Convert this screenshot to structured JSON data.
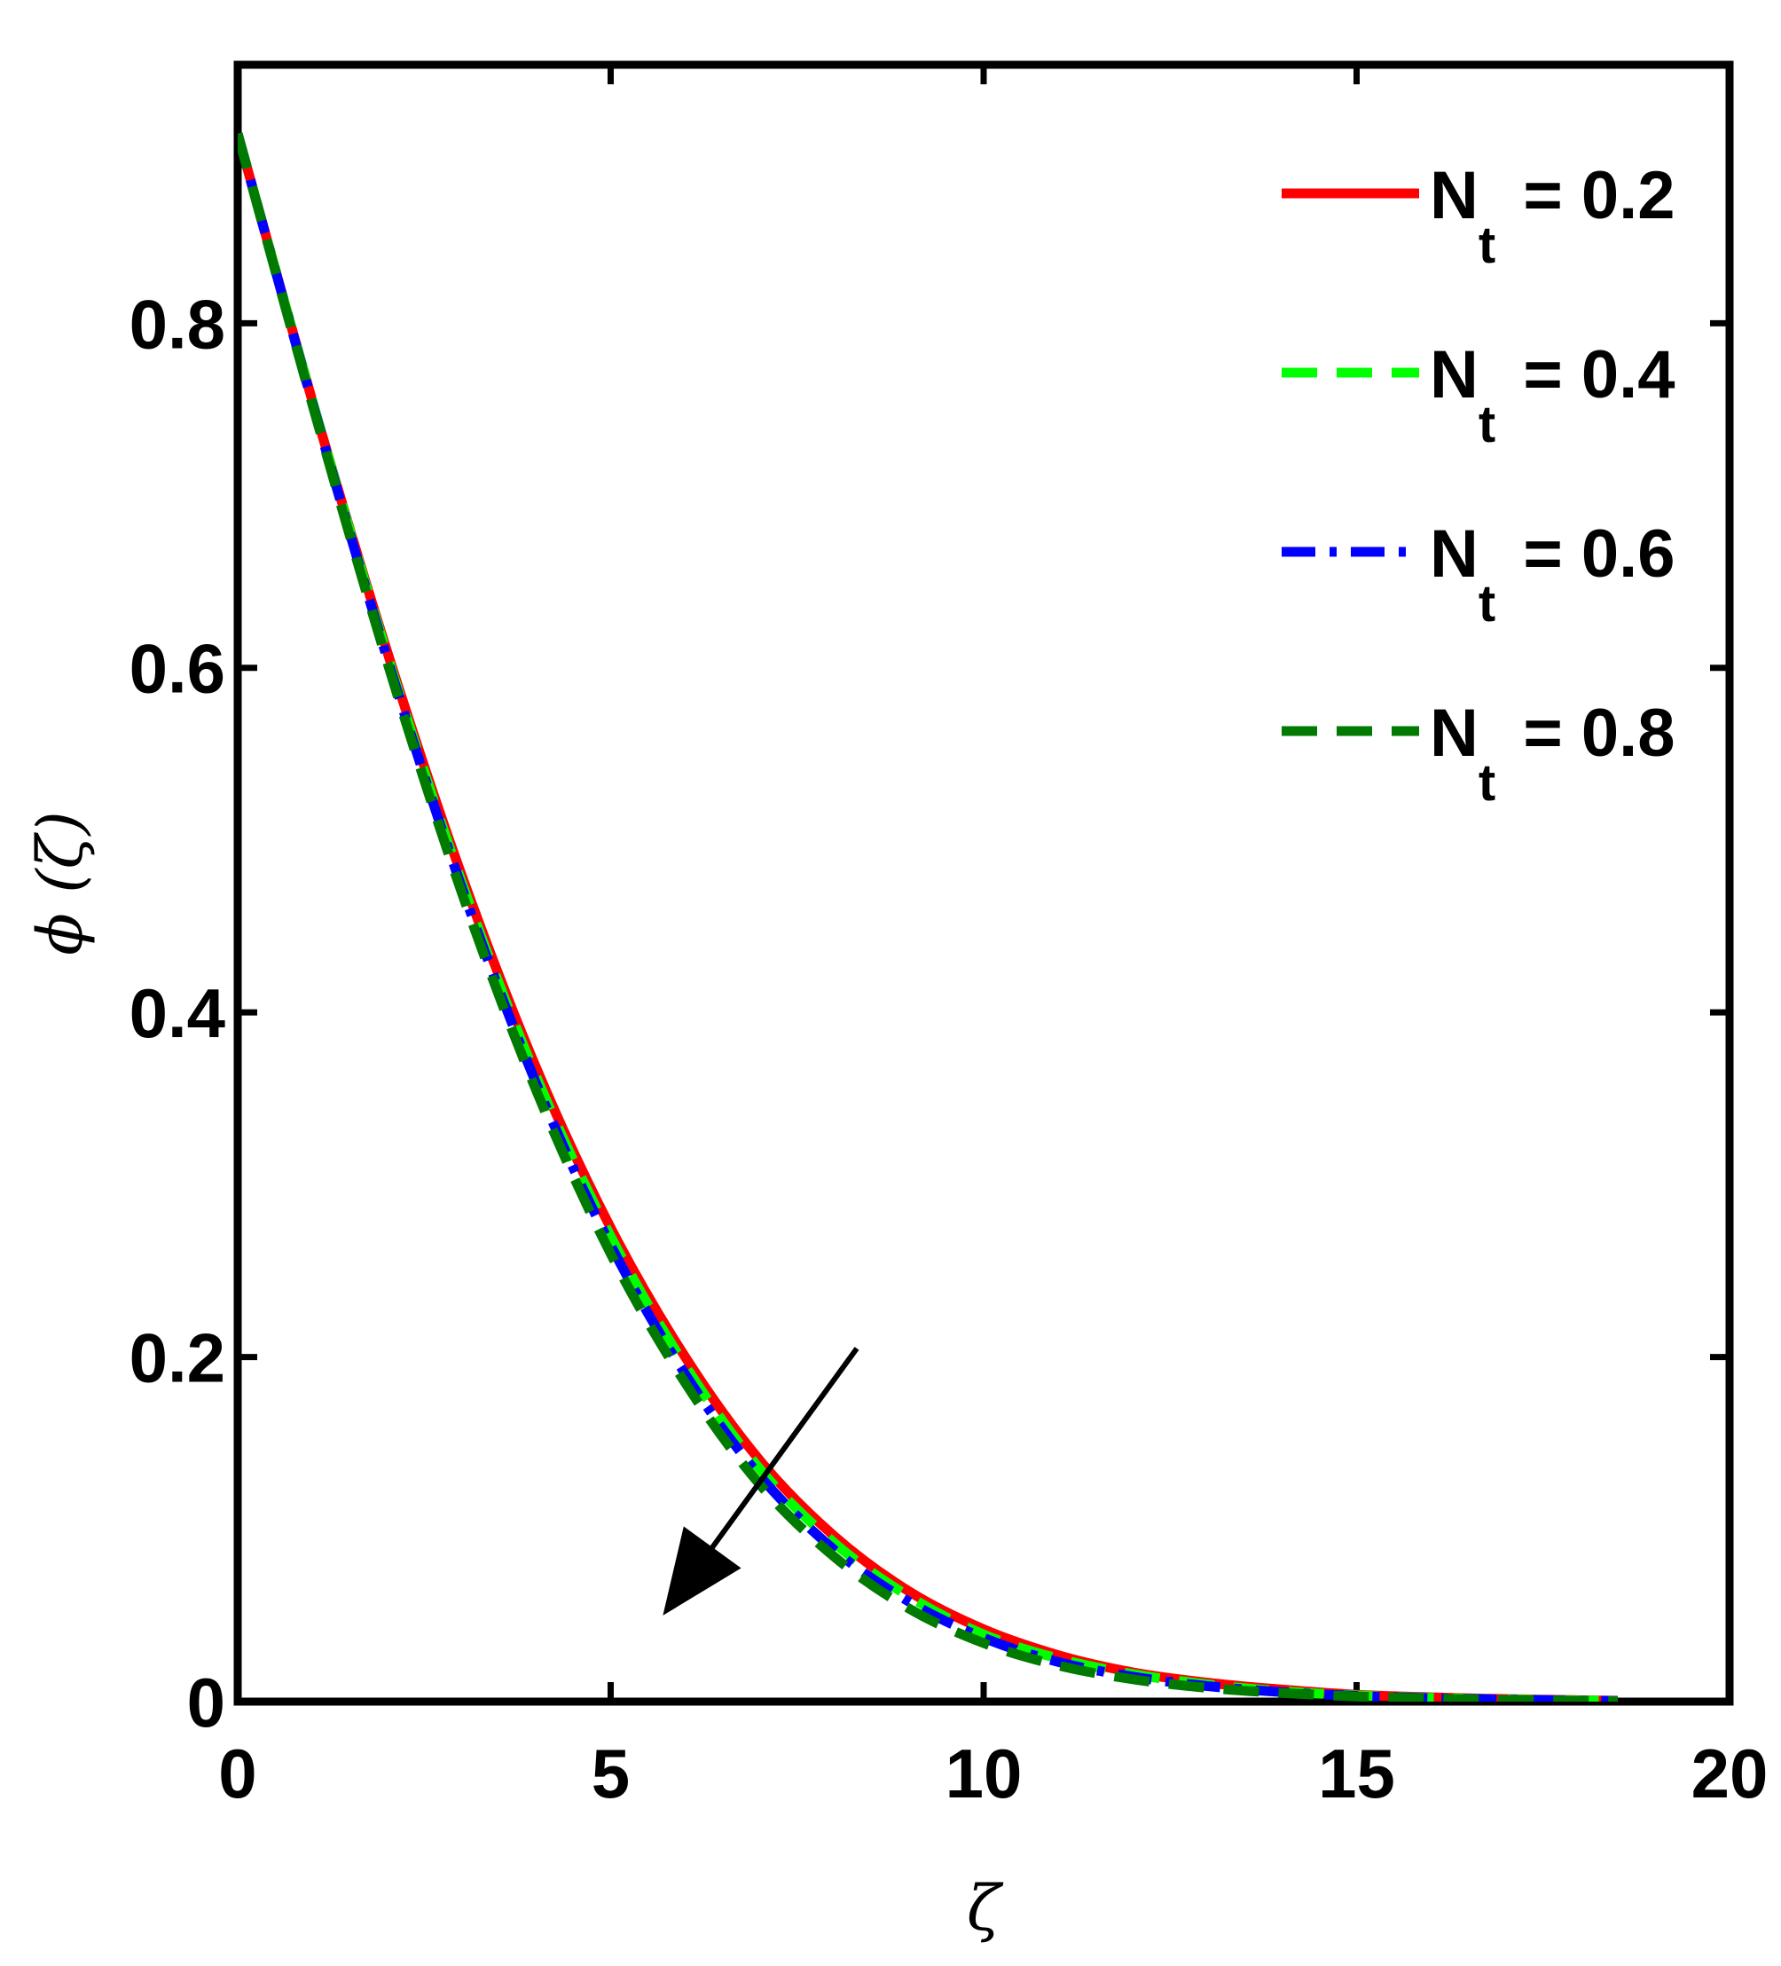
{
  "chart_data": {
    "type": "line",
    "xlabel": "ζ",
    "ylabel": "ϕ (ζ)",
    "xlim": [
      0,
      20
    ],
    "ylim": [
      0,
      0.95
    ],
    "xticks": [
      "0",
      "5",
      "10",
      "15",
      "20"
    ],
    "yticks": [
      "0",
      "0.2",
      "0.4",
      "0.6",
      "0.8"
    ],
    "grid": false,
    "legend_position": "top-right",
    "x": [
      0,
      1,
      2,
      3,
      4,
      5,
      6,
      7,
      8,
      9,
      10,
      11,
      12,
      13,
      14,
      15,
      16,
      17,
      18.5
    ],
    "series": [
      {
        "name": "N = 0.2",
        "name_main": "N",
        "name_sub": "t",
        "name_value": " = 0.2",
        "color": "#ff0000",
        "dash": "solid",
        "values": [
          0.91,
          0.755,
          0.61,
          0.48,
          0.368,
          0.275,
          0.2,
          0.14,
          0.096,
          0.064,
          0.042,
          0.027,
          0.017,
          0.011,
          0.007,
          0.004,
          0.0025,
          0.0015,
          0.0005
        ]
      },
      {
        "name": "N = 0.4",
        "name_main": "N",
        "name_sub": "t",
        "name_value": " = 0.4",
        "color": "#00ff00",
        "dash": "dashed",
        "values": [
          0.91,
          0.755,
          0.608,
          0.476,
          0.363,
          0.27,
          0.195,
          0.135,
          0.092,
          0.061,
          0.039,
          0.025,
          0.016,
          0.01,
          0.006,
          0.0036,
          0.0022,
          0.0013,
          0.0004
        ]
      },
      {
        "name": "N = 0.6",
        "name_main": "N",
        "name_sub": "t",
        "name_value": " = 0.6",
        "color": "#0000ff",
        "dash": "dashdot",
        "values": [
          0.91,
          0.754,
          0.606,
          0.473,
          0.359,
          0.265,
          0.19,
          0.131,
          0.088,
          0.058,
          0.037,
          0.023,
          0.0145,
          0.009,
          0.0055,
          0.0033,
          0.002,
          0.0012,
          0.0004
        ]
      },
      {
        "name": "N = 0.8",
        "name_main": "N",
        "name_sub": "t",
        "name_value": " = 0.8",
        "color": "#007a00",
        "dash": "dashed",
        "values": [
          0.91,
          0.753,
          0.604,
          0.47,
          0.355,
          0.26,
          0.185,
          0.126,
          0.084,
          0.054,
          0.034,
          0.021,
          0.013,
          0.008,
          0.005,
          0.003,
          0.0018,
          0.001,
          0.0003
        ]
      }
    ],
    "annotation": {
      "type": "arrow",
      "from": [
        8.3,
        0.205
      ],
      "to": [
        5.7,
        0.05
      ],
      "color": "#000000"
    }
  }
}
